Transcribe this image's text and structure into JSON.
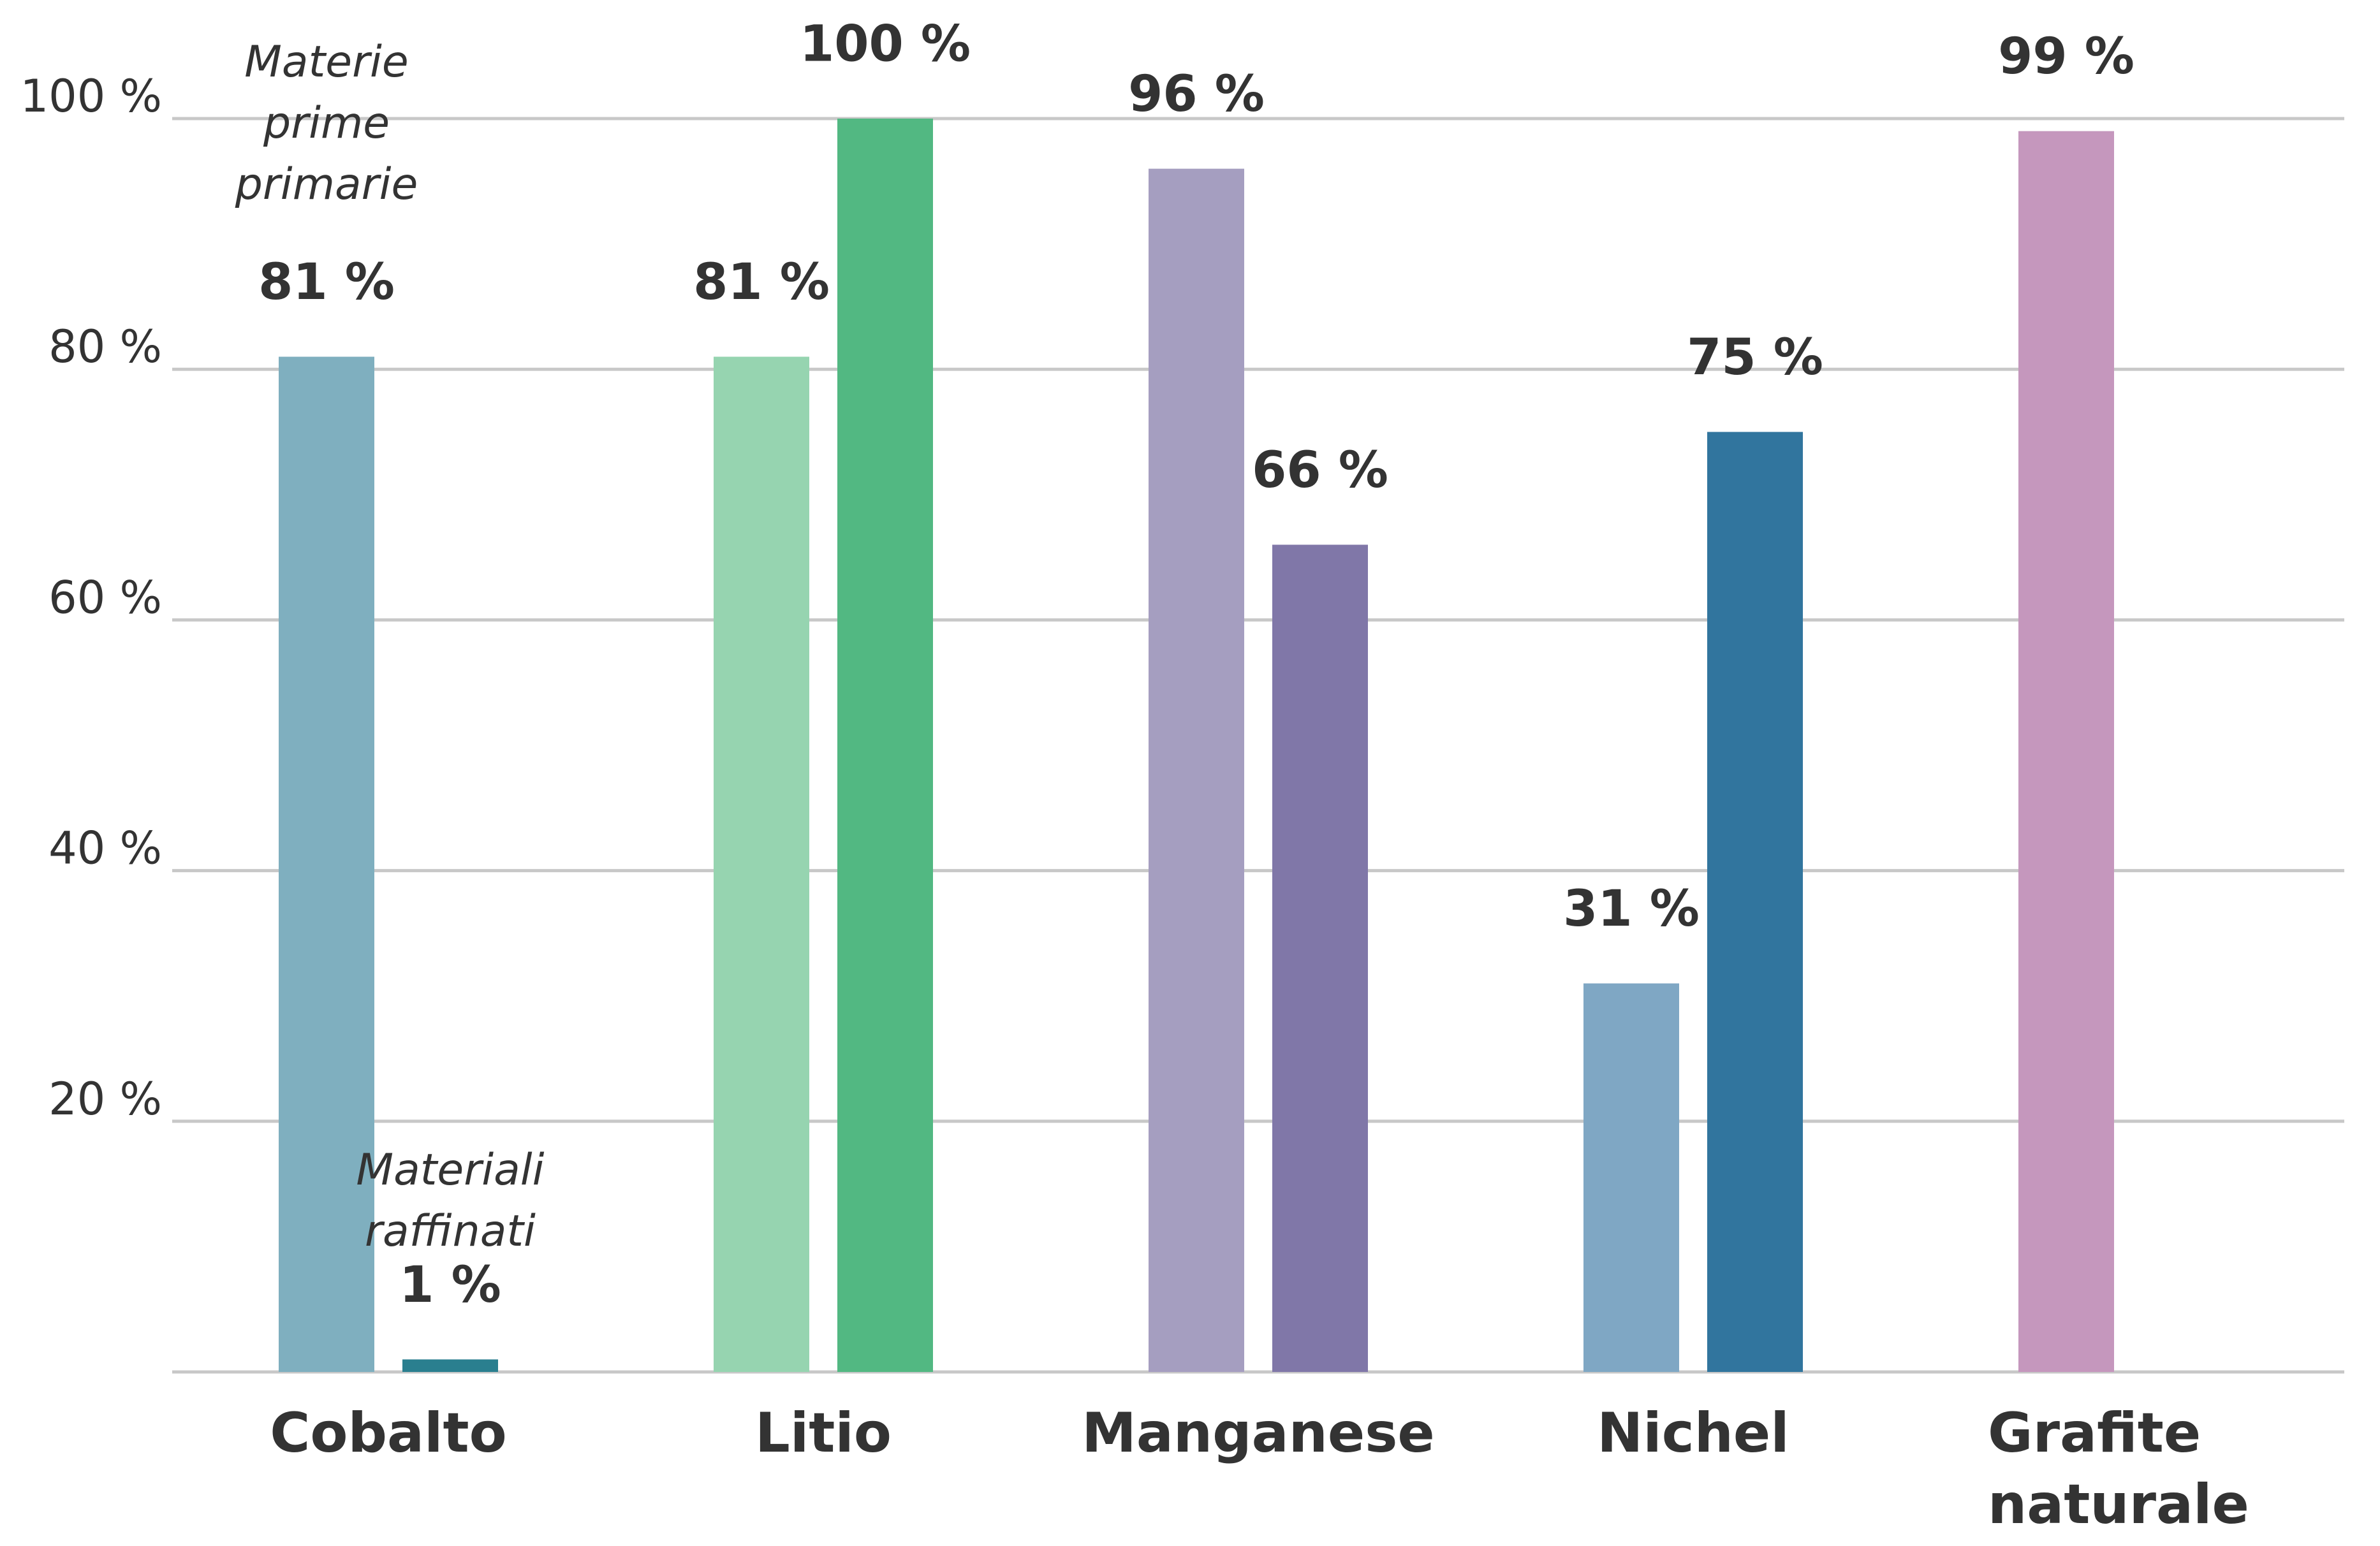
{
  "chart_data": {
    "type": "bar",
    "categories": [
      "Cobalto",
      "Litio",
      "Manganese",
      "Nichel",
      "Grafite naturale"
    ],
    "series": [
      {
        "name": "Materie prime primarie",
        "colors": [
          "#7fafbf",
          "#96d4b0",
          "#a59ec0",
          "#7fa7c4",
          "#c597bd"
        ],
        "values": [
          81,
          81,
          96,
          31,
          99
        ],
        "value_labels": [
          "81 %",
          "81 %",
          "96 %",
          "31 %",
          "99 %"
        ]
      },
      {
        "name": "Materiali raffinati",
        "colors": [
          "#2a7f8f",
          "#52b882",
          "#8077a8",
          "#31759e",
          null
        ],
        "values": [
          1,
          100,
          66,
          75,
          null
        ],
        "value_labels": [
          "1 %",
          "100 %",
          "66 %",
          "75 %",
          null
        ]
      }
    ],
    "ylim": [
      0,
      100
    ],
    "yticks": [
      {
        "value": 20,
        "label": "20 %"
      },
      {
        "value": 40,
        "label": "40 %"
      },
      {
        "value": 60,
        "label": "60 %"
      },
      {
        "value": 80,
        "label": "80 %"
      },
      {
        "value": 100,
        "label": "100 %"
      }
    ],
    "grid": true
  }
}
